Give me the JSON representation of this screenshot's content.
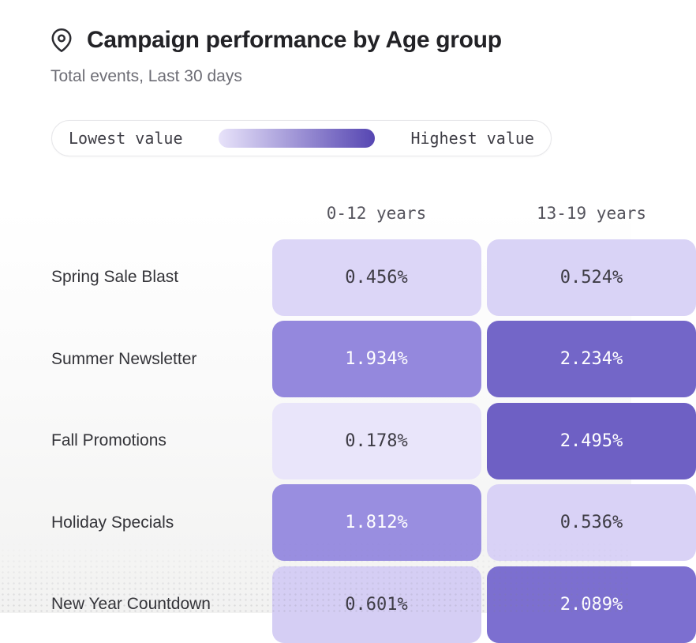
{
  "header": {
    "title": "Campaign performance by Age group",
    "subtitle": "Total events, Last 30 days",
    "icon": "map-pin-icon"
  },
  "legend": {
    "low_label": "Lowest value",
    "high_label": "Highest value",
    "gradient_start": "#E8E3FA",
    "gradient_end": "#5646B2"
  },
  "chart_data": {
    "type": "heatmap",
    "title": "Campaign performance by Age group",
    "subtitle": "Total events, Last 30 days",
    "legend": {
      "low": "Lowest value",
      "high": "Highest value",
      "position": "top"
    },
    "columns": [
      "0-12 years",
      "13-19 years"
    ],
    "rows": [
      "Spring Sale Blast",
      "Summer Newsletter",
      "Fall Promotions",
      "Holiday Specials",
      "New Year Countdown"
    ],
    "values": [
      [
        0.456,
        0.524
      ],
      [
        1.934,
        2.234
      ],
      [
        0.178,
        2.495
      ],
      [
        1.812,
        0.536
      ],
      [
        0.601,
        2.089
      ]
    ],
    "unit": "%",
    "value_decimals": 3,
    "cell_colors": [
      [
        "#DCD6F7",
        "#D9D3F6"
      ],
      [
        "#9488DD",
        "#7366C8"
      ],
      [
        "#E9E5FA",
        "#6E60C4"
      ],
      [
        "#998EE0",
        "#D9D2F6"
      ],
      [
        "#D5CEF4",
        "#7C6FD0"
      ]
    ],
    "color_scale": {
      "min_value": 0.178,
      "max_value": 2.495,
      "min_color": "#E9E5FA",
      "max_color": "#6E60C4"
    }
  }
}
